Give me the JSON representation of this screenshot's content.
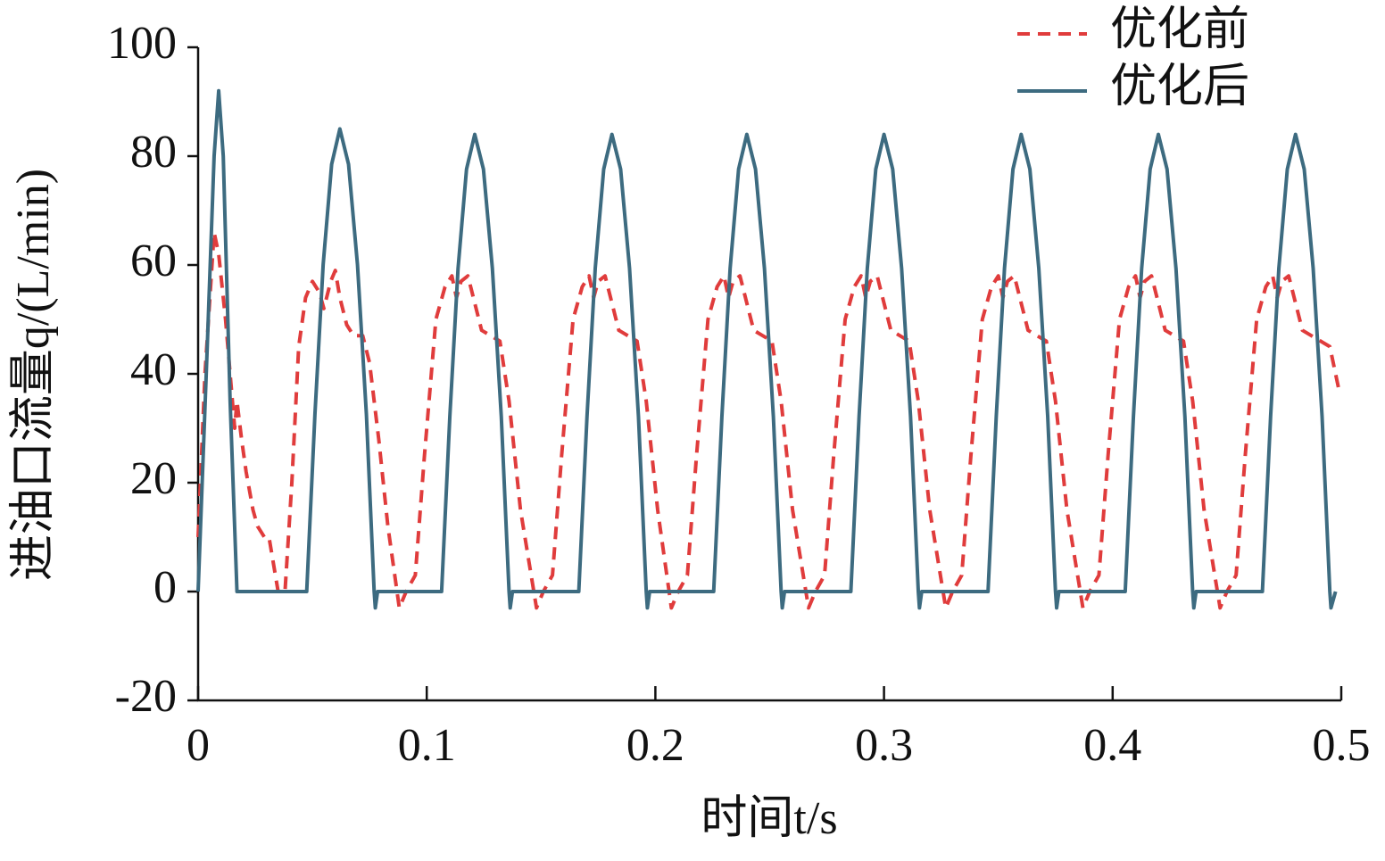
{
  "chart_data": {
    "type": "line",
    "xlabel": "时间t/s",
    "ylabel": "进油口流量q/(L/min)",
    "xlim": [
      0,
      0.5
    ],
    "ylim": [
      -20,
      100
    ],
    "xticks": [
      0,
      0.1,
      0.2,
      0.3,
      0.4,
      0.5
    ],
    "yticks": [
      -20,
      0,
      20,
      40,
      60,
      80,
      100
    ],
    "grid": false,
    "legend": "upper right",
    "series": [
      {
        "name": "优化前",
        "color": "#e03c3c",
        "line_style": "dashed",
        "x": [
          0,
          0.003,
          0.007,
          0.009,
          0.012,
          0.014,
          0.016,
          0.017,
          0.019,
          0.021,
          0.024,
          0.026,
          0.029,
          0.031,
          0.033,
          0.035,
          0.038,
          0.041,
          0.044,
          0.047,
          0.05,
          0.053,
          0.055,
          0.058,
          0.06,
          0.062,
          0.065,
          0.068,
          0.072,
          0.075,
          0.079,
          0.083,
          0.088,
          0.091,
          0.095,
          0.099,
          0.104,
          0.108,
          0.111,
          0.113,
          0.115,
          0.118,
          0.121,
          0.124,
          0.128,
          0.132,
          0.136,
          0.141,
          0.148,
          0.151,
          0.155,
          0.159,
          0.164,
          0.168,
          0.171,
          0.173,
          0.175,
          0.178,
          0.181,
          0.184,
          0.188,
          0.192,
          0.196,
          0.201,
          0.207,
          0.21,
          0.214,
          0.218,
          0.223,
          0.227,
          0.23,
          0.232,
          0.234,
          0.237,
          0.24,
          0.243,
          0.247,
          0.251,
          0.255,
          0.26,
          0.267,
          0.27,
          0.274,
          0.278,
          0.283,
          0.287,
          0.29,
          0.292,
          0.294,
          0.297,
          0.3,
          0.303,
          0.307,
          0.311,
          0.315,
          0.32,
          0.327,
          0.33,
          0.334,
          0.338,
          0.343,
          0.347,
          0.35,
          0.352,
          0.354,
          0.357,
          0.36,
          0.363,
          0.367,
          0.371,
          0.375,
          0.38,
          0.387,
          0.39,
          0.394,
          0.398,
          0.403,
          0.407,
          0.41,
          0.412,
          0.414,
          0.417,
          0.42,
          0.423,
          0.427,
          0.431,
          0.435,
          0.44,
          0.447,
          0.45,
          0.454,
          0.458,
          0.463,
          0.467,
          0.47,
          0.472,
          0.474,
          0.477,
          0.48,
          0.483,
          0.487,
          0.491,
          0.495,
          0.499
        ],
        "values": [
          10,
          40,
          66,
          62,
          50,
          40,
          30,
          35,
          28,
          22,
          15,
          12,
          10,
          10,
          5,
          0,
          0,
          20,
          45,
          54,
          57,
          55,
          52,
          57,
          59,
          54,
          49,
          47,
          47,
          42,
          28,
          12,
          -3,
          0,
          3,
          25,
          50,
          56,
          58,
          54,
          57,
          58,
          53,
          48,
          47,
          46,
          35,
          15,
          -3,
          0,
          3,
          25,
          50,
          56,
          58,
          54,
          57,
          58,
          53,
          48,
          47,
          46,
          35,
          15,
          -3,
          0,
          3,
          25,
          50,
          56,
          58,
          54,
          57,
          58,
          53,
          48,
          47,
          46,
          35,
          15,
          -3,
          0,
          3,
          25,
          50,
          56,
          58,
          54,
          57,
          58,
          53,
          48,
          47,
          46,
          35,
          15,
          -3,
          0,
          3,
          25,
          50,
          56,
          58,
          54,
          57,
          58,
          53,
          48,
          47,
          46,
          35,
          15,
          -3,
          0,
          3,
          25,
          50,
          56,
          58,
          54,
          57,
          58,
          53,
          48,
          47,
          46,
          35,
          15,
          -3,
          0,
          3,
          25,
          50,
          56,
          58,
          54,
          57,
          58,
          53,
          48,
          47,
          46,
          45,
          37
        ]
      },
      {
        "name": "优化后",
        "color": "#3d6b80",
        "line_style": "solid",
        "x": [
          0,
          0.004,
          0.007,
          0.009,
          0.011,
          0.014,
          0.017,
          0.0475,
          0.0511,
          0.0547,
          0.0584,
          0.062,
          0.0658,
          0.0697,
          0.0736,
          0.077,
          0.0775,
          0.0785,
          0.1065,
          0.1101,
          0.1137,
          0.1174,
          0.121,
          0.1248,
          0.1287,
          0.1326,
          0.136,
          0.1365,
          0.1375,
          0.1665,
          0.1701,
          0.1737,
          0.1774,
          0.181,
          0.1848,
          0.1887,
          0.1926,
          0.196,
          0.1965,
          0.1975,
          0.2255,
          0.2291,
          0.2327,
          0.2364,
          0.24,
          0.2438,
          0.2477,
          0.2516,
          0.255,
          0.2555,
          0.2565,
          0.2855,
          0.2891,
          0.2927,
          0.2964,
          0.3,
          0.3038,
          0.3077,
          0.3116,
          0.315,
          0.3155,
          0.3165,
          0.3455,
          0.3491,
          0.3527,
          0.3564,
          0.36,
          0.3638,
          0.3677,
          0.3716,
          0.375,
          0.3755,
          0.3765,
          0.4055,
          0.4091,
          0.4127,
          0.4164,
          0.42,
          0.4238,
          0.4277,
          0.4316,
          0.435,
          0.4355,
          0.4365,
          0.4655,
          0.4691,
          0.4727,
          0.4764,
          0.48,
          0.4838,
          0.4877,
          0.4916,
          0.495,
          0.4955,
          0.4975
        ],
        "values": [
          0,
          45,
          80,
          92,
          80,
          35,
          0,
          0,
          32.6,
          60.1,
          78.5,
          85,
          78.5,
          60.1,
          32.6,
          0,
          -3,
          0,
          0,
          32.2,
          59.4,
          77.6,
          84,
          77.6,
          59.4,
          32.2,
          0,
          -3,
          0,
          0,
          32.2,
          59.4,
          77.6,
          84,
          77.6,
          59.4,
          32.2,
          0,
          -3,
          0,
          0,
          32.2,
          59.4,
          77.6,
          84,
          77.6,
          59.4,
          32.2,
          0,
          -3,
          0,
          0,
          32.2,
          59.4,
          77.6,
          84,
          77.6,
          59.4,
          32.2,
          0,
          -3,
          0,
          0,
          32.2,
          59.4,
          77.6,
          84,
          77.6,
          59.4,
          32.2,
          0,
          -3,
          0,
          0,
          32.2,
          59.4,
          77.6,
          84,
          77.6,
          59.4,
          32.2,
          0,
          -3,
          0,
          0,
          32.2,
          59.4,
          77.6,
          84,
          77.6,
          59.4,
          32.2,
          0,
          -3,
          0
        ]
      }
    ]
  }
}
